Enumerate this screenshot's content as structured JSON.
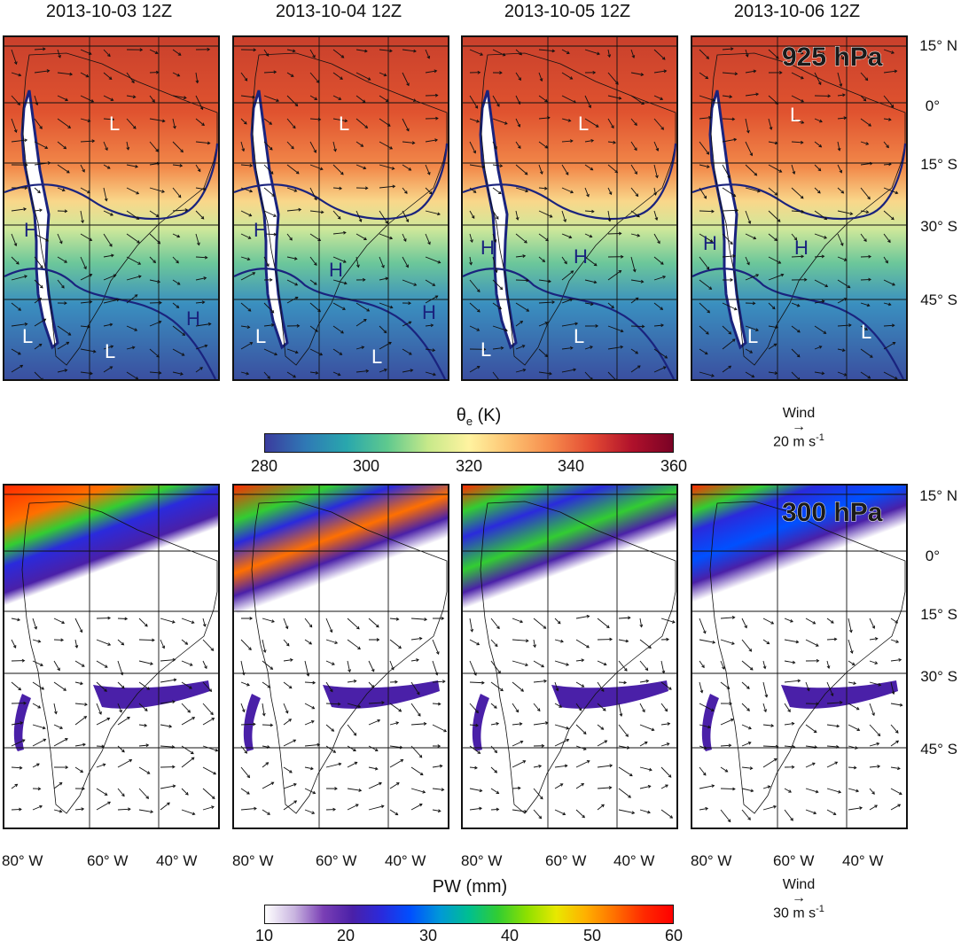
{
  "dates": [
    "2013-10-03 12Z",
    "2013-10-04 12Z",
    "2013-10-05 12Z",
    "2013-10-06 12Z"
  ],
  "lat_labels": [
    "15° N",
    "0°",
    "15° S",
    "30° S",
    "45° S"
  ],
  "lon_labels": [
    "80° W",
    "60° W",
    "40° W"
  ],
  "level_top": "925 hPa",
  "level_bottom": "300 hPa",
  "pressure_labels": {
    "p1": [
      "L",
      "H",
      "L",
      "L",
      "H"
    ],
    "p2": [
      "L",
      "H",
      "H",
      "L",
      "L",
      "H"
    ],
    "p3": [
      "L",
      "H",
      "H",
      "L",
      "L"
    ],
    "p4": [
      "L",
      "H",
      "H",
      "L",
      "L"
    ]
  },
  "colorbar_top": {
    "title": "θe (K)",
    "title_main": "θ",
    "title_sub": "e",
    "title_unit": " (K)",
    "ticks": [
      "280",
      "300",
      "320",
      "340",
      "360"
    ],
    "colors": [
      "#3b3c9e",
      "#2f79b5",
      "#29a7ad",
      "#5fc98e",
      "#c7e98a",
      "#fff3a0",
      "#fdc271",
      "#f68b4c",
      "#e34a33",
      "#b0112b",
      "#7a0225"
    ]
  },
  "colorbar_bottom": {
    "title": "PW (mm)",
    "ticks": [
      "10",
      "20",
      "30",
      "40",
      "50",
      "60"
    ],
    "colors": [
      "#ffffff",
      "#c9b5e0",
      "#7a3fb5",
      "#4a20a8",
      "#2a2adc",
      "#0050ff",
      "#0098d8",
      "#00bf90",
      "#32cd32",
      "#8fe000",
      "#e8e800",
      "#ffb000",
      "#ff7000",
      "#ff2a00",
      "#ff0000"
    ]
  },
  "wind_top": {
    "label": "Wind",
    "value": "20 m s",
    "sup": "-1"
  },
  "wind_bottom": {
    "label": "Wind",
    "value": "30 m s",
    "sup": "-1"
  }
}
